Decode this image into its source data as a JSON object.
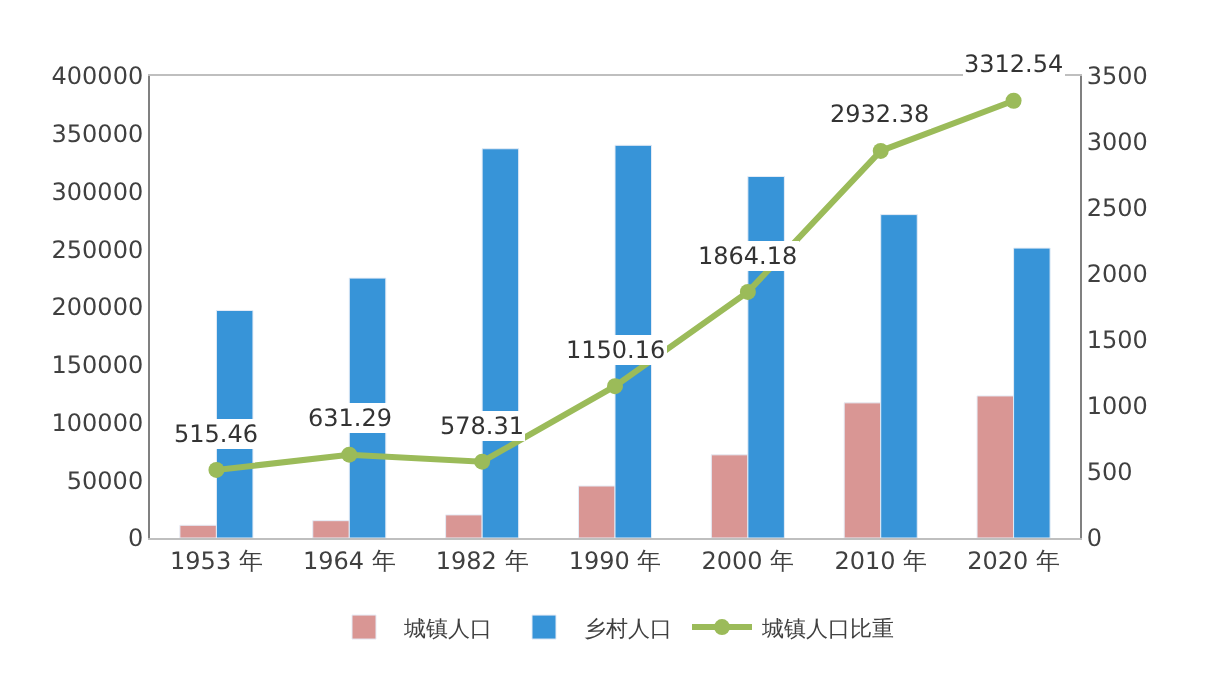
{
  "chart_data": {
    "type": "bar",
    "categories": [
      "1953 年",
      "1964 年",
      "1982 年",
      "1990 年",
      "2000 年",
      "2010 年",
      "2020 年"
    ],
    "series": [
      {
        "name": "城镇人口",
        "color": "#d99694",
        "values": [
          11000,
          15000,
          20000,
          45000,
          72000,
          117000,
          123000
        ]
      },
      {
        "name": "乡村人口",
        "color": "#3794d8",
        "values": [
          197000,
          225000,
          337000,
          340000,
          313000,
          280000,
          251000
        ]
      },
      {
        "name": "城镇人口比重",
        "type": "line",
        "axis": "y2",
        "color": "#9bbb59",
        "marker": "circle",
        "values": [
          515.46,
          631.29,
          578.31,
          1150.16,
          1864.18,
          2932.38,
          3312.54
        ],
        "value_labels": [
          "515.46",
          "631.29",
          "578.31",
          "1150.16",
          "1864.18",
          "2932.38",
          "3312.54"
        ]
      }
    ],
    "ylim": [
      0,
      400000
    ],
    "yticks": [
      0,
      50000,
      100000,
      150000,
      200000,
      250000,
      300000,
      350000,
      400000
    ],
    "y2lim": [
      0,
      3500
    ],
    "y2ticks": [
      0,
      500,
      1000,
      1500,
      2000,
      2500,
      3000,
      3500
    ],
    "legend": "bottom"
  }
}
